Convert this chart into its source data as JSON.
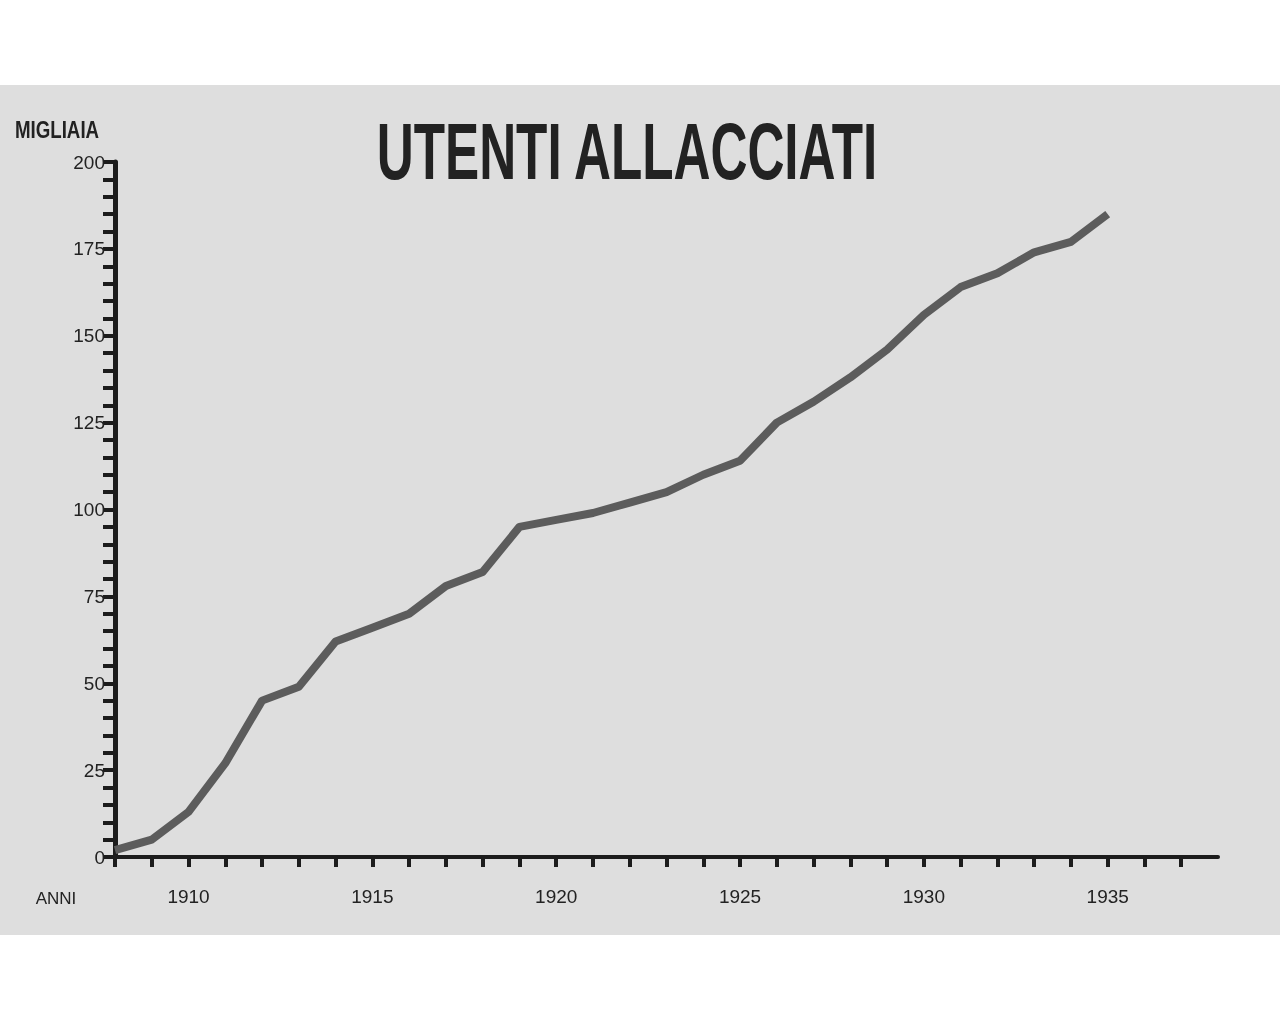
{
  "chart_data": {
    "type": "line",
    "title": "UTENTI ALLACCIATI",
    "ylabel": "MIGLIAIA",
    "xlabel": "ANNI",
    "x": [
      1908,
      1909,
      1910,
      1911,
      1912,
      1913,
      1914,
      1915,
      1916,
      1917,
      1918,
      1919,
      1920,
      1921,
      1922,
      1923,
      1924,
      1925,
      1926,
      1927,
      1928,
      1929,
      1930,
      1931,
      1932,
      1933,
      1934,
      1935
    ],
    "values": [
      2,
      5,
      13,
      27,
      45,
      49,
      62,
      66,
      70,
      78,
      82,
      95,
      97,
      99,
      102,
      105,
      110,
      114,
      125,
      131,
      138,
      146,
      156,
      164,
      168,
      174,
      177,
      185
    ],
    "color": "#5c5c5c",
    "marker": "none",
    "line_style": "solid",
    "xlim": [
      1908,
      1938
    ],
    "xticks": [
      {
        "value": 1908,
        "label": null
      },
      {
        "value": 1909,
        "label": null
      },
      1910,
      {
        "value": 1911,
        "label": null
      },
      {
        "value": 1912,
        "label": null
      },
      {
        "value": 1913,
        "label": null
      },
      {
        "value": 1914,
        "label": null
      },
      1915,
      {
        "value": 1916,
        "label": null
      },
      {
        "value": 1917,
        "label": null
      },
      {
        "value": 1918,
        "label": null
      },
      {
        "value": 1919,
        "label": null
      },
      1920,
      {
        "value": 1921,
        "label": null
      },
      {
        "value": 1922,
        "label": null
      },
      {
        "value": 1923,
        "label": null
      },
      {
        "value": 1924,
        "label": null
      },
      1925,
      {
        "value": 1926,
        "label": null
      },
      {
        "value": 1927,
        "label": null
      },
      {
        "value": 1928,
        "label": null
      },
      {
        "value": 1929,
        "label": null
      },
      1930,
      {
        "value": 1931,
        "label": null
      },
      {
        "value": 1932,
        "label": null
      },
      {
        "value": 1933,
        "label": null
      },
      {
        "value": 1934,
        "label": null
      },
      1935,
      {
        "value": 1936,
        "label": null
      },
      {
        "value": 1937,
        "label": null
      }
    ],
    "ylim": [
      0,
      200
    ],
    "yticks": [
      0,
      {
        "value": 5,
        "label": null
      },
      {
        "value": 10,
        "label": null
      },
      {
        "value": 15,
        "label": null
      },
      {
        "value": 20,
        "label": null
      },
      25,
      {
        "value": 30,
        "label": null
      },
      {
        "value": 35,
        "label": null
      },
      {
        "value": 40,
        "label": null
      },
      {
        "value": 45,
        "label": null
      },
      50,
      {
        "value": 55,
        "label": null
      },
      {
        "value": 60,
        "label": null
      },
      {
        "value": 65,
        "label": null
      },
      {
        "value": 70,
        "label": null
      },
      75,
      {
        "value": 80,
        "label": null
      },
      {
        "value": 85,
        "label": null
      },
      {
        "value": 90,
        "label": null
      },
      {
        "value": 95,
        "label": null
      },
      100,
      {
        "value": 105,
        "label": null
      },
      {
        "value": 110,
        "label": null
      },
      {
        "value": 115,
        "label": null
      },
      {
        "value": 120,
        "label": null
      },
      125,
      {
        "value": 130,
        "label": null
      },
      {
        "value": 135,
        "label": null
      },
      {
        "value": 140,
        "label": null
      },
      {
        "value": 145,
        "label": null
      },
      150,
      {
        "value": 155,
        "label": null
      },
      {
        "value": 160,
        "label": null
      },
      {
        "value": 165,
        "label": null
      },
      {
        "value": 170,
        "label": null
      },
      175,
      {
        "value": 180,
        "label": null
      },
      {
        "value": 185,
        "label": null
      },
      {
        "value": 190,
        "label": null
      },
      {
        "value": 195,
        "label": null
      },
      200
    ]
  }
}
